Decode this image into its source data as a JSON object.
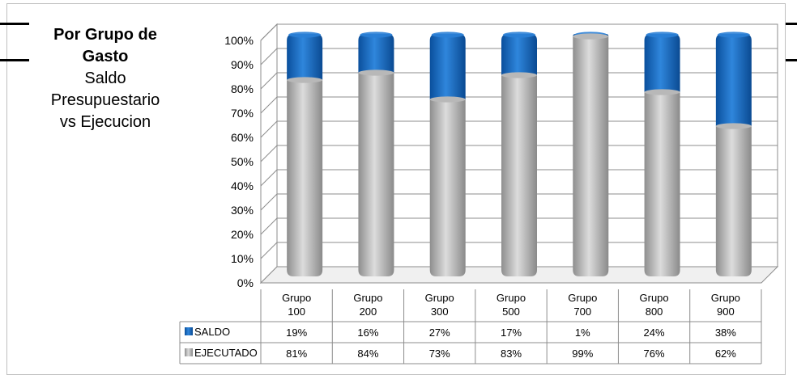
{
  "title": {
    "line1": "Por Grupo de",
    "line2": "Gasto",
    "line3": "Saldo",
    "line4": "Presupuestario",
    "line5": "vs Ejecucion"
  },
  "chart_data": {
    "type": "bar",
    "stacked": true,
    "percent_stacked": true,
    "categories": [
      "Grupo 100",
      "Grupo 200",
      "Grupo 300",
      "Grupo 500",
      "Grupo 700",
      "Grupo 800",
      "Grupo 900"
    ],
    "series": [
      {
        "name": "EJECUTADO",
        "values": [
          81,
          84,
          73,
          83,
          99,
          76,
          62
        ],
        "labels": [
          "81%",
          "84%",
          "73%",
          "83%",
          "99%",
          "76%",
          "62%"
        ],
        "color": "#b4b4b4"
      },
      {
        "name": "SALDO",
        "values": [
          19,
          16,
          27,
          17,
          1,
          24,
          38
        ],
        "labels": [
          "19%",
          "16%",
          "27%",
          "17%",
          "1%",
          "24%",
          "38%"
        ],
        "color": "#1f6fc4"
      }
    ],
    "y_ticks": [
      "0%",
      "10%",
      "20%",
      "30%",
      "40%",
      "50%",
      "60%",
      "70%",
      "80%",
      "90%",
      "100%"
    ],
    "ylim": [
      0,
      100
    ],
    "grid": true,
    "legend": "data-table-below"
  }
}
